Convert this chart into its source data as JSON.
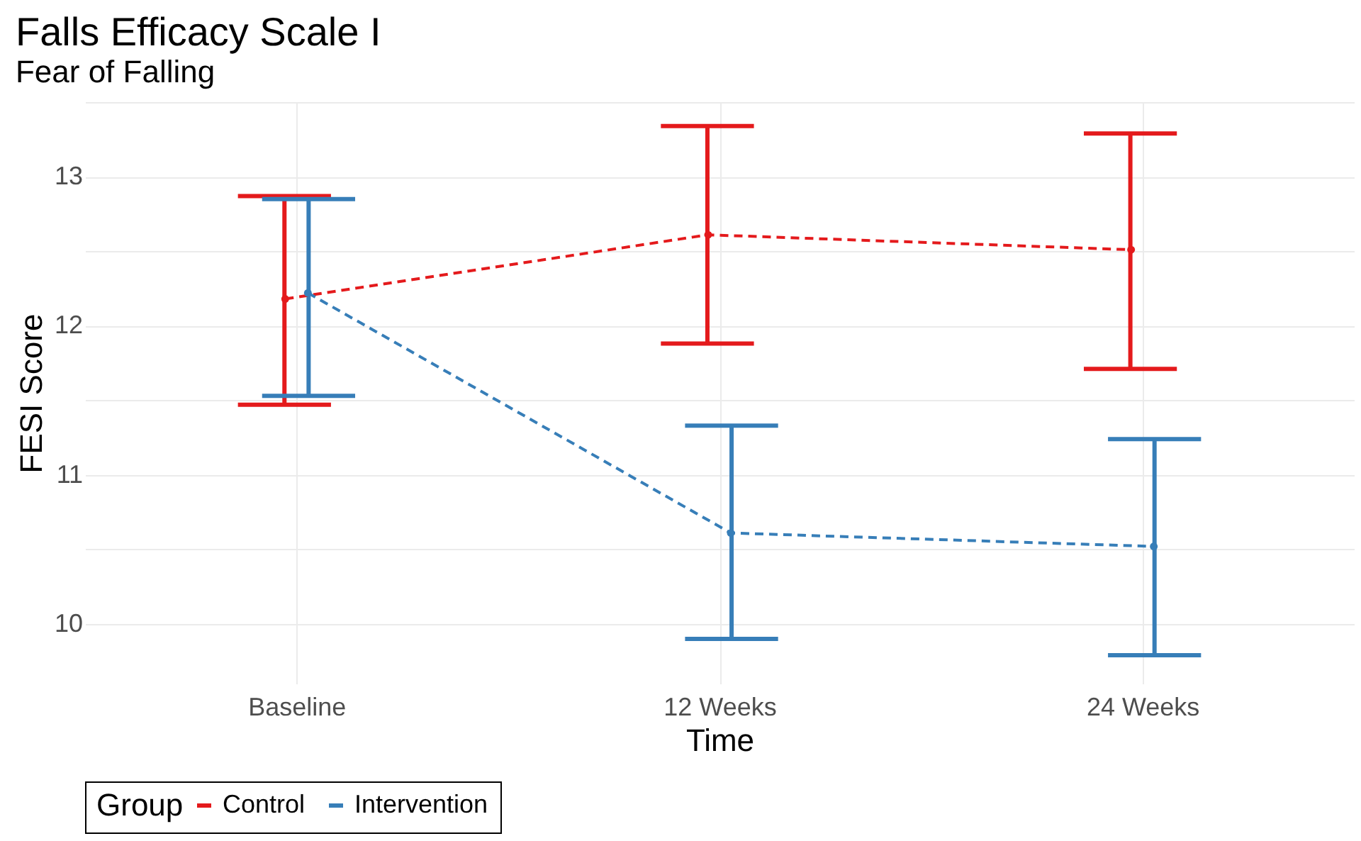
{
  "chart_data": {
    "type": "line",
    "title": "Falls Efficacy Scale I",
    "subtitle": "Fear of Falling",
    "xlabel": "Time",
    "ylabel": "FESI Score",
    "legend_title": "Group",
    "categories": [
      "Baseline",
      "12 Weeks",
      "24 Weeks"
    ],
    "series": [
      {
        "name": "Control",
        "color": "#e41a1c",
        "values": [
          12.18,
          12.61,
          12.51
        ],
        "errors": [
          [
            11.47,
            12.87
          ],
          [
            11.88,
            13.34
          ],
          [
            11.71,
            13.29
          ]
        ]
      },
      {
        "name": "Intervention",
        "color": "#377eb8",
        "values": [
          12.22,
          10.61,
          10.52
        ],
        "errors": [
          [
            11.53,
            12.85
          ],
          [
            9.9,
            11.33
          ],
          [
            9.79,
            11.24
          ]
        ]
      }
    ],
    "ylim": [
      9.6,
      13.5
    ],
    "yticks": [
      10,
      {
        "value": 10.5,
        "label": null
      },
      11,
      {
        "value": 11.5,
        "label": null
      },
      12,
      {
        "value": 12.5,
        "label": null
      },
      13,
      {
        "value": 13.5,
        "label": null
      }
    ],
    "grid": true,
    "legend": "bottom",
    "marker": "circle",
    "line_style": "dashed"
  }
}
